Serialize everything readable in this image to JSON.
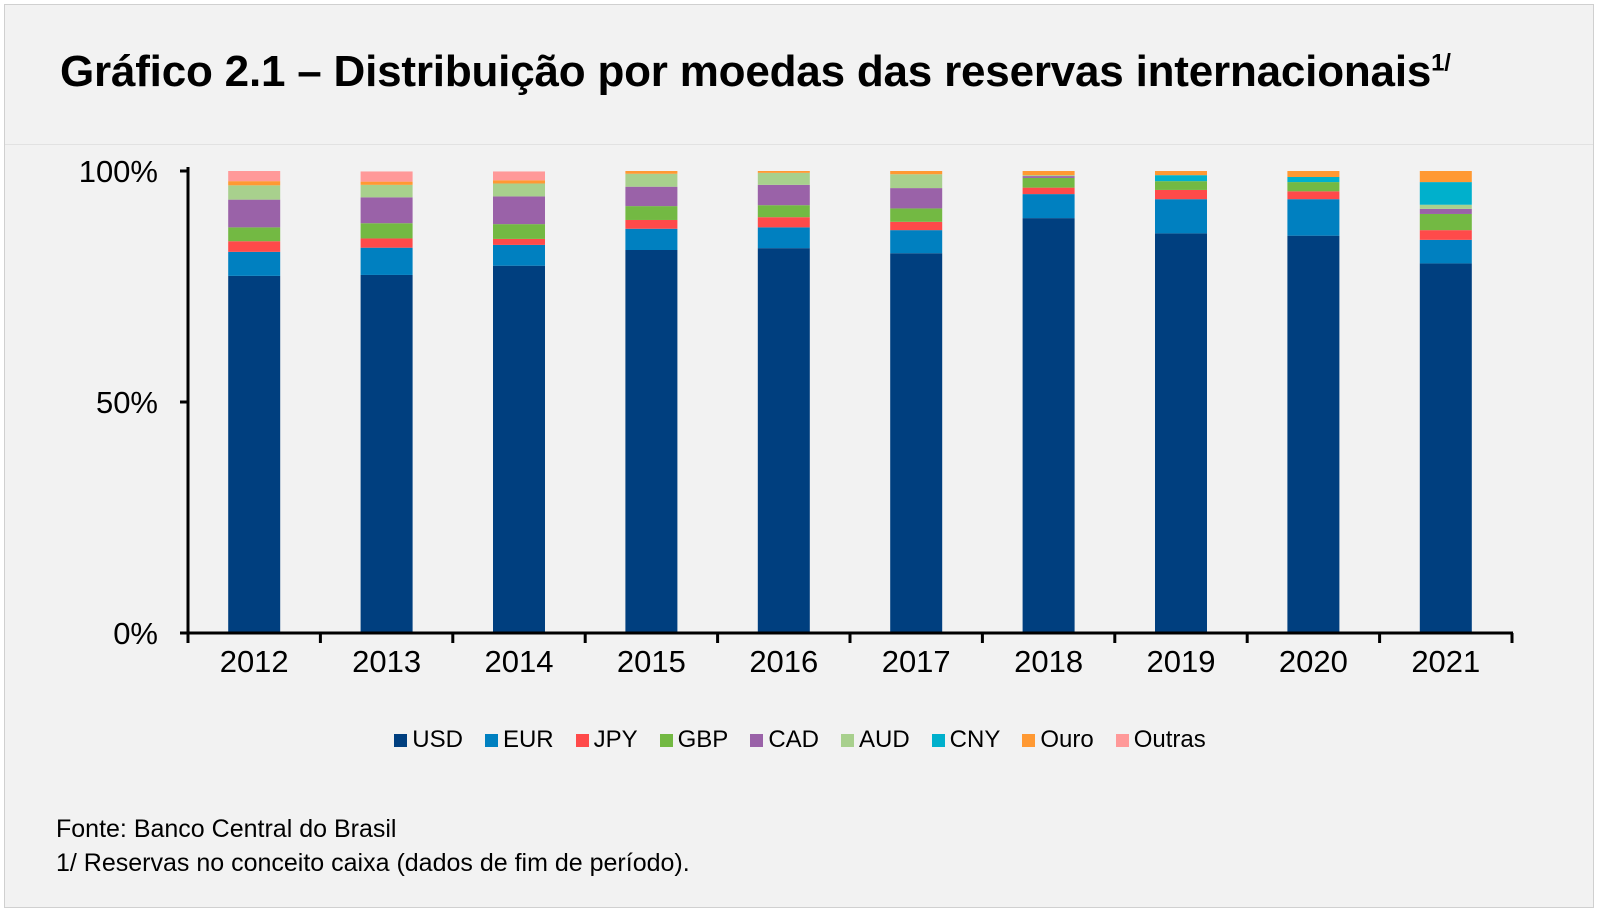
{
  "title": {
    "text": "Gráfico 2.1 – Distribuição por moedas das reservas internacionais",
    "superscript": "1/"
  },
  "footer": {
    "source": "Fonte: Banco Central do Brasil",
    "note": "1/ Reservas no conceito caixa (dados de fim de período)."
  },
  "chart_data": {
    "type": "bar",
    "stacked": true,
    "title": "Gráfico 2.1 – Distribuição por moedas das reservas internacionais",
    "xlabel": "",
    "ylabel": "",
    "ylim": [
      0,
      100
    ],
    "yticks": [
      0,
      50,
      100
    ],
    "ytick_labels": [
      "0%",
      "50%",
      "100%"
    ],
    "grid": false,
    "legend_position": "bottom",
    "categories": [
      "2012",
      "2013",
      "2014",
      "2015",
      "2016",
      "2017",
      "2018",
      "2019",
      "2020",
      "2021"
    ],
    "series": [
      {
        "name": "USD",
        "color": "#003f7f",
        "values": [
          77.3,
          77.5,
          79.5,
          82.9,
          83.3,
          82.2,
          89.8,
          86.5,
          86.0,
          80.0
        ]
      },
      {
        "name": "EUR",
        "color": "#0080c0",
        "values": [
          5.2,
          5.9,
          4.5,
          4.6,
          4.5,
          5.0,
          5.2,
          7.4,
          7.9,
          5.1
        ]
      },
      {
        "name": "JPY",
        "color": "#ff4a4a",
        "values": [
          2.3,
          2.0,
          1.3,
          1.9,
          2.2,
          1.8,
          1.4,
          2.0,
          1.7,
          2.1
        ]
      },
      {
        "name": "GBP",
        "color": "#73b943",
        "values": [
          3.0,
          3.3,
          3.2,
          3.0,
          2.6,
          2.9,
          2.1,
          1.9,
          2.0,
          3.5
        ]
      },
      {
        "name": "CAD",
        "color": "#9a62a8",
        "values": [
          6.0,
          5.6,
          6.0,
          4.2,
          4.4,
          4.4,
          0.4,
          0.0,
          0.0,
          1.1
        ]
      },
      {
        "name": "AUD",
        "color": "#a8d08d",
        "values": [
          3.1,
          2.7,
          2.8,
          2.8,
          2.6,
          3.0,
          0.2,
          0.0,
          0.0,
          0.9
        ]
      },
      {
        "name": "CNY",
        "color": "#00b0cc",
        "values": [
          0.0,
          0.0,
          0.0,
          0.0,
          0.0,
          0.0,
          0.0,
          1.3,
          1.1,
          4.9
        ]
      },
      {
        "name": "Ouro",
        "color": "#ff9933",
        "values": [
          0.9,
          0.7,
          0.7,
          0.6,
          0.4,
          0.7,
          0.9,
          0.9,
          1.3,
          2.4
        ]
      },
      {
        "name": "Outras",
        "color": "#ff9999",
        "values": [
          2.2,
          2.2,
          1.9,
          0.0,
          0.0,
          0.0,
          0.0,
          0.0,
          0.0,
          0.0
        ]
      }
    ]
  }
}
